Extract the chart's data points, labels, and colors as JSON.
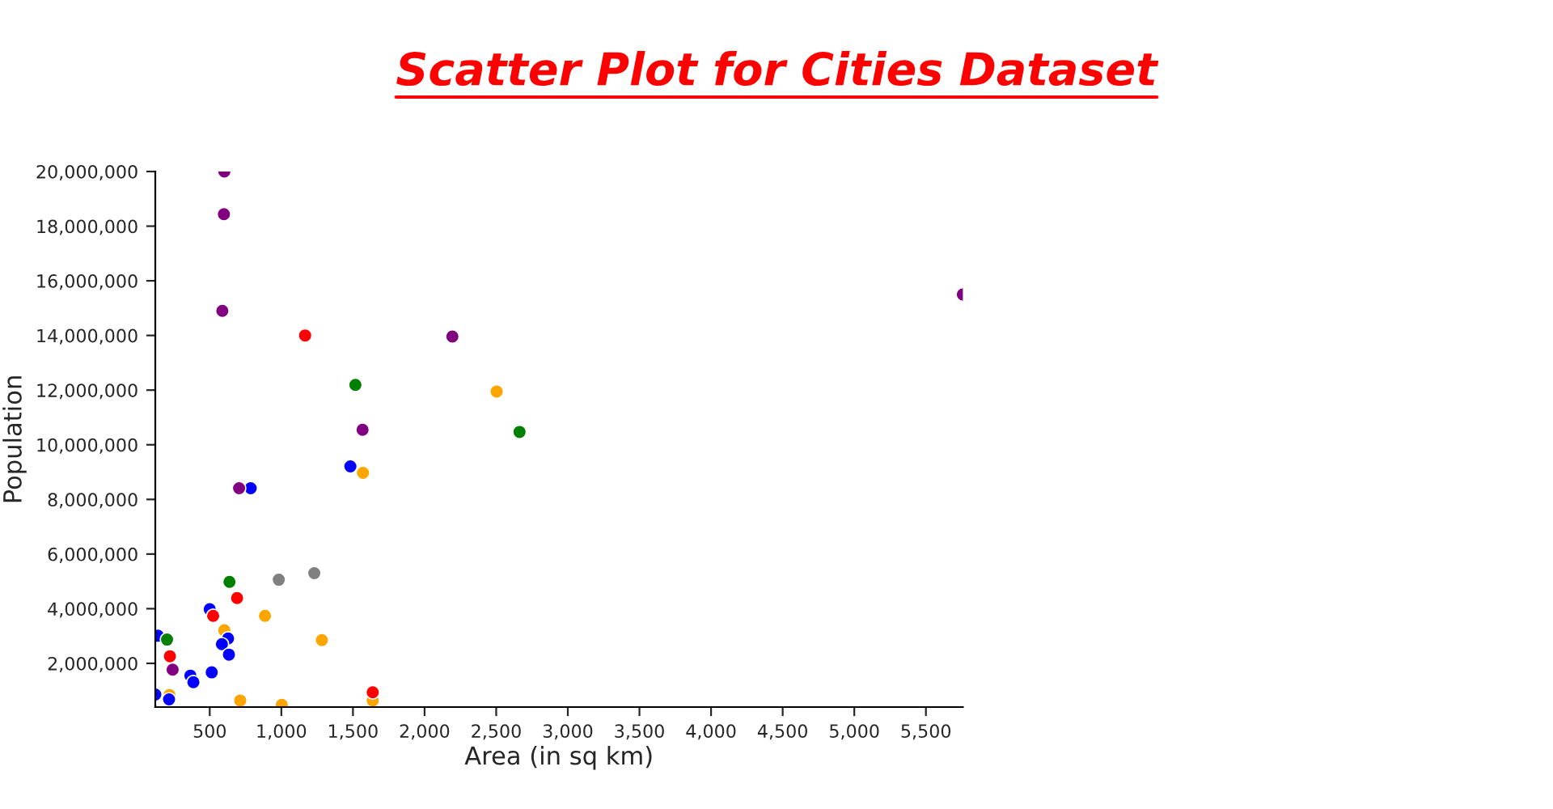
{
  "chart_data": {
    "type": "scatter",
    "title": "Scatter Plot for Cities Dataset",
    "xlabel": "Area (in sq km)",
    "ylabel": "Population",
    "xlim": [
      120,
      5758
    ],
    "ylim": [
      400000,
      20000000
    ],
    "xticks": [
      500,
      {
        "value": 1000,
        "label": "1,000"
      },
      {
        "value": 1500,
        "label": "1,500"
      },
      {
        "value": 2000,
        "label": "2,000"
      },
      {
        "value": 2500,
        "label": "2,500"
      },
      {
        "value": 3000,
        "label": "3,000"
      },
      {
        "value": 3500,
        "label": "3,500"
      },
      {
        "value": 4000,
        "label": "4,000"
      },
      {
        "value": 4500,
        "label": "4,500"
      },
      {
        "value": 5000,
        "label": "5,000"
      },
      {
        "value": 5500,
        "label": "5,500"
      }
    ],
    "yticks": [
      {
        "value": 2000000,
        "label": "2,000,000"
      },
      {
        "value": 4000000,
        "label": "4,000,000"
      },
      {
        "value": 6000000,
        "label": "6,000,000"
      },
      {
        "value": 8000000,
        "label": "8,000,000"
      },
      {
        "value": 10000000,
        "label": "10,000,000"
      },
      {
        "value": 12000000,
        "label": "12,000,000"
      },
      {
        "value": 14000000,
        "label": "14,000,000"
      },
      {
        "value": 16000000,
        "label": "16,000,000"
      },
      {
        "value": 18000000,
        "label": "18,000,000"
      },
      {
        "value": 20000000,
        "label": "20,000,000"
      }
    ],
    "grid": false,
    "marker": "circle",
    "series": [
      {
        "color": "#800080",
        "x": [
          602,
          599,
          588,
          705,
          1567,
          241,
          5758,
          2194
        ],
        "values": [
          20000000,
          18440000,
          14900000,
          8410000,
          10550000,
          1770000,
          15500000,
          13960000
        ]
      },
      {
        "color": "#ff0000",
        "x": [
          1166,
          691,
          524,
          222,
          1638
        ],
        "values": [
          14000000,
          4390000,
          3740000,
          2260000,
          940000
        ]
      },
      {
        "color": "#008000",
        "x": [
          1517,
          638,
          202,
          2663
        ],
        "values": [
          12190000,
          4980000,
          2870000,
          10470000
        ]
      },
      {
        "color": "#808080",
        "x": [
          982,
          1230
        ],
        "values": [
          5060000,
          5300000
        ]
      },
      {
        "color": "#0000ff",
        "x": [
          786,
          1482,
          500,
          138,
          628,
          585,
          634,
          514,
          365,
          386,
          120,
          216
        ],
        "values": [
          8410000,
          9210000,
          3980000,
          3010000,
          2910000,
          2700000,
          2320000,
          1670000,
          1550000,
          1310000,
          860000,
          680000
        ]
      },
      {
        "color": "#ffa500",
        "x": [
          1570,
          2503,
          886,
          602,
          1283,
          219,
          713,
          1003,
          1638
        ],
        "values": [
          8970000,
          11950000,
          3740000,
          3210000,
          2850000,
          840000,
          640000,
          480000,
          640000
        ]
      }
    ]
  }
}
